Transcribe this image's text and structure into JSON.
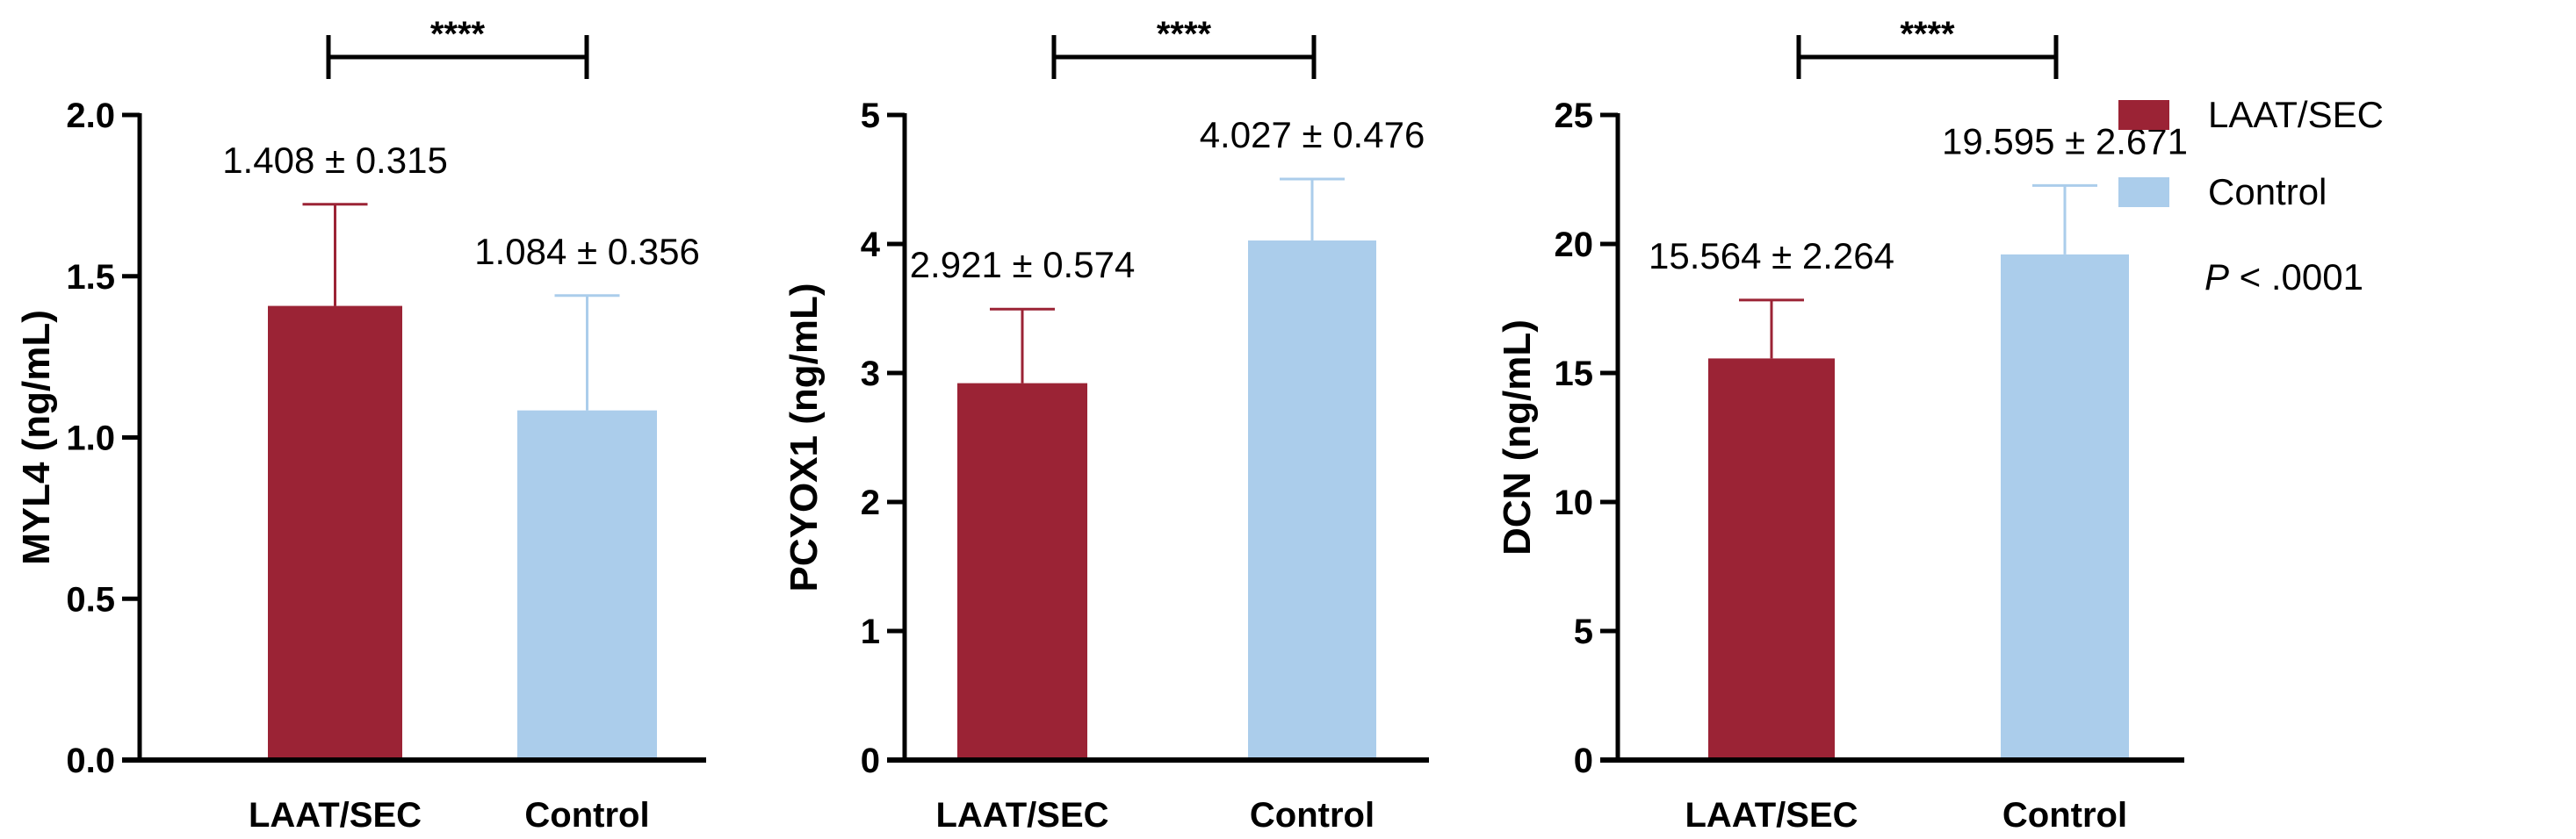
{
  "colors": {
    "LAAT/SEC": "#9B2335",
    "Control": "#ABCDEB",
    "axis": "#000000"
  },
  "legend": {
    "items": [
      "LAAT/SEC",
      "Control"
    ],
    "placement": "right",
    "p_label_italic": "P",
    "p_label_rest": " < .0001"
  },
  "chart_data": [
    {
      "type": "bar",
      "ylabel": "MYL4 (ng/mL)",
      "categories": [
        "LAAT/SEC",
        "Control"
      ],
      "values": [
        1.408,
        1.084
      ],
      "sd": [
        0.315,
        0.356
      ],
      "value_labels": [
        "1.408 ± 0.315",
        "1.084 ± 0.356"
      ],
      "ylim": [
        0,
        2.0
      ],
      "yticks": [
        0,
        0.5,
        1.0,
        1.5,
        2.0
      ],
      "ytick_labels": [
        "0.0",
        "0.5",
        "1.0",
        "1.5",
        "2.0"
      ],
      "significance": "****"
    },
    {
      "type": "bar",
      "ylabel": "PCYOX1 (ng/mL)",
      "categories": [
        "LAAT/SEC",
        "Control"
      ],
      "values": [
        2.921,
        4.027
      ],
      "sd": [
        0.574,
        0.476
      ],
      "value_labels": [
        "2.921 ± 0.574",
        "4.027 ± 0.476"
      ],
      "ylim": [
        0,
        5
      ],
      "yticks": [
        0,
        1,
        2,
        3,
        4,
        5
      ],
      "ytick_labels": [
        "0",
        "1",
        "2",
        "3",
        "4",
        "5"
      ],
      "significance": "****"
    },
    {
      "type": "bar",
      "ylabel": "DCN (ng/mL)",
      "categories": [
        "LAAT/SEC",
        "Control"
      ],
      "values": [
        15.564,
        19.595
      ],
      "sd": [
        2.264,
        2.671
      ],
      "value_labels": [
        "15.564 ± 2.264",
        "19.595 ± 2.671"
      ],
      "ylim": [
        0,
        25
      ],
      "yticks": [
        0,
        5,
        10,
        15,
        20,
        25
      ],
      "ytick_labels": [
        "0",
        "5",
        "10",
        "15",
        "20",
        "25"
      ],
      "significance": "****"
    }
  ]
}
